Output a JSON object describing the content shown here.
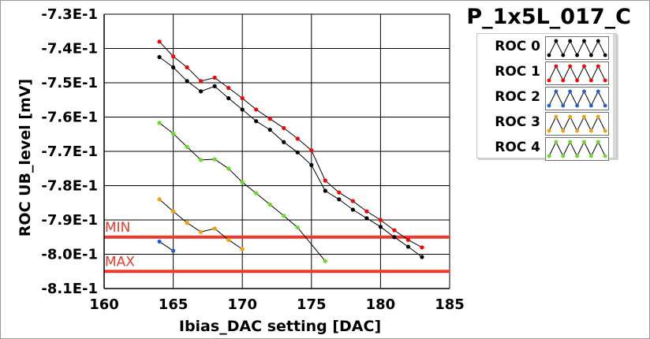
{
  "chart_data": {
    "type": "line",
    "title": "P_1x5L_017_C",
    "xlabel": "Ibias_DAC setting [DAC]",
    "ylabel": "ROC UB_level [mV]",
    "xlim": [
      160,
      185
    ],
    "ylim": [
      -0.81,
      -0.73
    ],
    "x_ticks": [
      160,
      165,
      170,
      175,
      180,
      185
    ],
    "x_tick_labels": [
      "160",
      "165",
      "170",
      "175",
      "180",
      "185"
    ],
    "y_ticks": [
      -0.73,
      -0.74,
      -0.75,
      -0.76,
      -0.77,
      -0.78,
      -0.79,
      -0.8,
      -0.81
    ],
    "y_tick_labels": [
      "-7.3E-1",
      "-7.4E-1",
      "-7.5E-1",
      "-7.6E-1",
      "-7.7E-1",
      "-7.8E-1",
      "-7.9E-1",
      "-8.0E-1",
      "-8.1E-1"
    ],
    "grid": true,
    "legend_position": "top-right",
    "series": [
      {
        "name": "ROC 0",
        "color": "#000000",
        "x": [
          164,
          165,
          166,
          167,
          168,
          169,
          170,
          171,
          172,
          173,
          174,
          175,
          176,
          177,
          178,
          179,
          180,
          181,
          182,
          183
        ],
        "y": [
          -0.7425,
          -0.7455,
          -0.7495,
          -0.7525,
          -0.751,
          -0.7545,
          -0.7578,
          -0.7612,
          -0.7637,
          -0.7673,
          -0.7703,
          -0.774,
          -0.7815,
          -0.784,
          -0.787,
          -0.7895,
          -0.792,
          -0.795,
          -0.7978,
          -0.8008
        ]
      },
      {
        "name": "ROC 1",
        "color": "#ff0000",
        "x": [
          164,
          165,
          166,
          167,
          168,
          169,
          170,
          171,
          172,
          173,
          174,
          175,
          176,
          177,
          178,
          179,
          180,
          181,
          182,
          183
        ],
        "y": [
          -0.738,
          -0.7423,
          -0.7455,
          -0.7495,
          -0.7485,
          -0.7515,
          -0.7545,
          -0.7578,
          -0.7605,
          -0.7632,
          -0.7663,
          -0.7697,
          -0.7785,
          -0.782,
          -0.7845,
          -0.7875,
          -0.79,
          -0.793,
          -0.7958,
          -0.798
        ]
      },
      {
        "name": "ROC 2",
        "color": "#1f5fd6",
        "x": [
          164,
          165
        ],
        "y": [
          -0.7963,
          -0.799
        ]
      },
      {
        "name": "ROC 3",
        "color": "#f5a000",
        "x": [
          164,
          165,
          166,
          167,
          168,
          169,
          170
        ],
        "y": [
          -0.784,
          -0.7875,
          -0.7908,
          -0.7935,
          -0.7925,
          -0.7958,
          -0.7985
        ]
      },
      {
        "name": "ROC 4",
        "color": "#66dd22",
        "x": [
          164,
          165,
          166,
          167,
          168,
          169,
          170,
          171,
          172,
          173,
          174,
          176
        ],
        "y": [
          -0.7617,
          -0.7648,
          -0.7687,
          -0.7725,
          -0.7723,
          -0.775,
          -0.779,
          -0.7822,
          -0.7855,
          -0.7888,
          -0.7922,
          -0.802
        ]
      }
    ],
    "threshold_lines": [
      {
        "label": "MIN",
        "y": -0.795,
        "color": "#ee3a2e"
      },
      {
        "label": "MAX",
        "y": -0.805,
        "color": "#ee3a2e"
      }
    ]
  }
}
